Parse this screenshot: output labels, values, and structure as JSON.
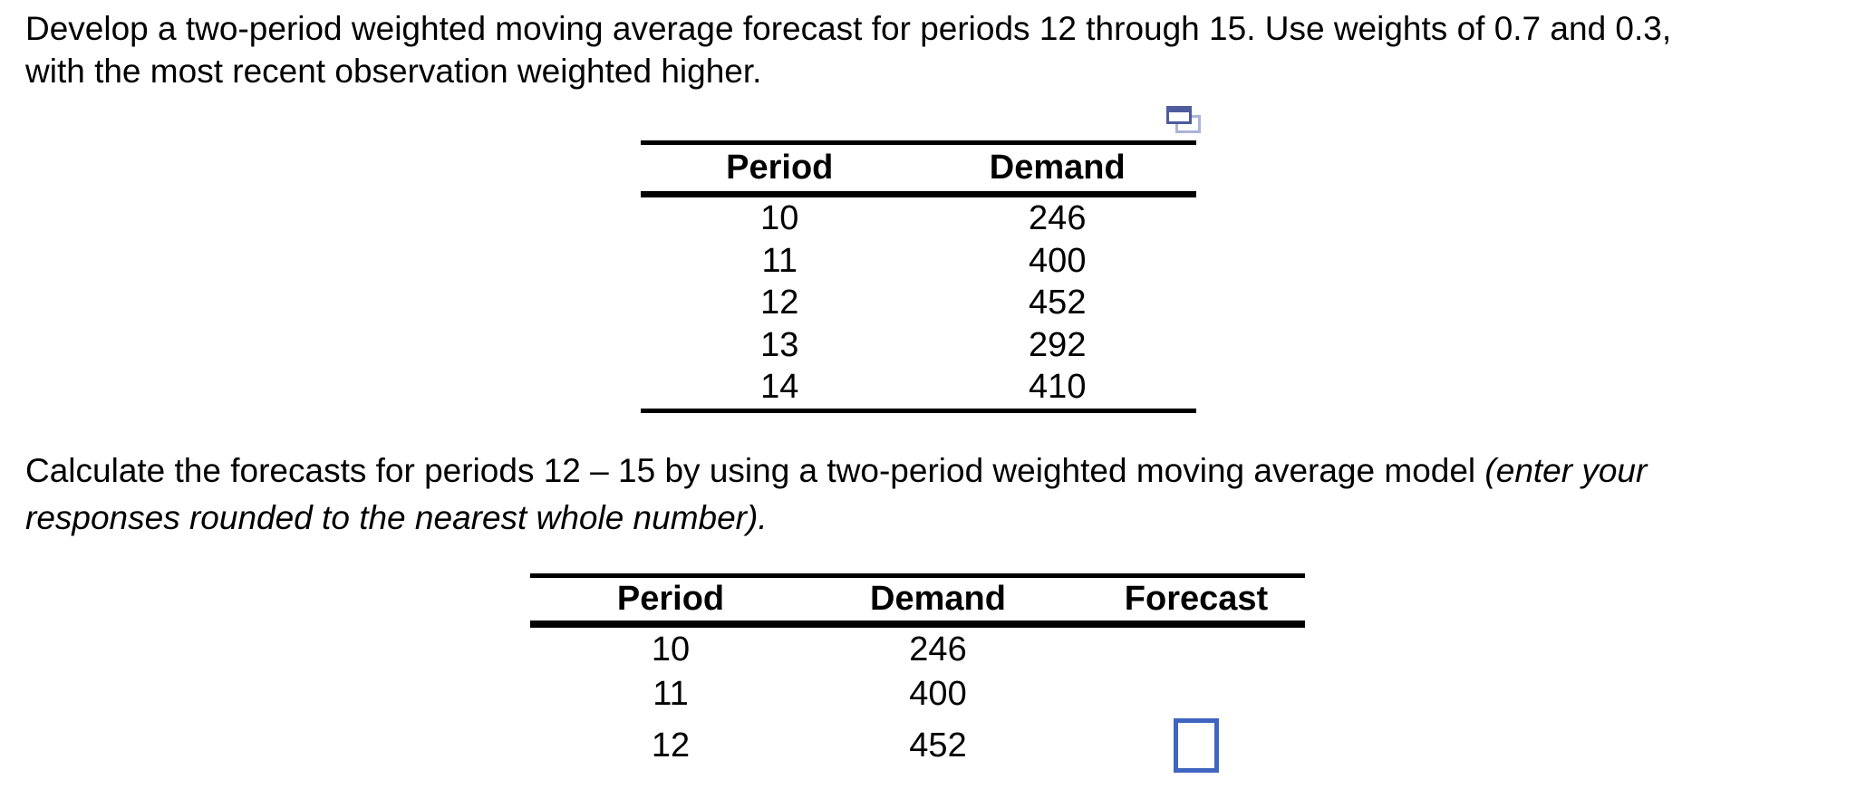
{
  "question": {
    "line1": "Develop a two-period weighted moving average forecast for periods 12 through 15. Use weights of 0.7 and 0.3,",
    "line2": "with the most recent observation weighted higher."
  },
  "instruction": {
    "line1_normal": "Calculate the forecasts for periods 12 – 15 by using a two-period weighted moving average model ",
    "line1_italic": "(enter your",
    "line2_italic": "responses rounded to the nearest whole number)."
  },
  "demand_table": {
    "headers": {
      "period": "Period",
      "demand": "Demand"
    },
    "rows": [
      {
        "period": "10",
        "demand": "246"
      },
      {
        "period": "11",
        "demand": "400"
      },
      {
        "period": "12",
        "demand": "452"
      },
      {
        "period": "13",
        "demand": "292"
      },
      {
        "period": "14",
        "demand": "410"
      }
    ]
  },
  "forecast_table": {
    "headers": {
      "period": "Period",
      "demand": "Demand",
      "forecast": "Forecast"
    },
    "rows": [
      {
        "period": "10",
        "demand": "246",
        "forecast": ""
      },
      {
        "period": "11",
        "demand": "400",
        "forecast": ""
      },
      {
        "period": "12",
        "demand": "452",
        "forecast": ""
      }
    ],
    "input": {
      "value": "",
      "border_color": "#3f65c0"
    }
  },
  "icons": {
    "copy_icon": {
      "name": "copy-question-icon",
      "front_color": "#4e5c9e",
      "back_color": "#aab4d6"
    }
  },
  "colors": {
    "text": "#000000",
    "background": "#ffffff",
    "input_border": "#3f65c0"
  }
}
